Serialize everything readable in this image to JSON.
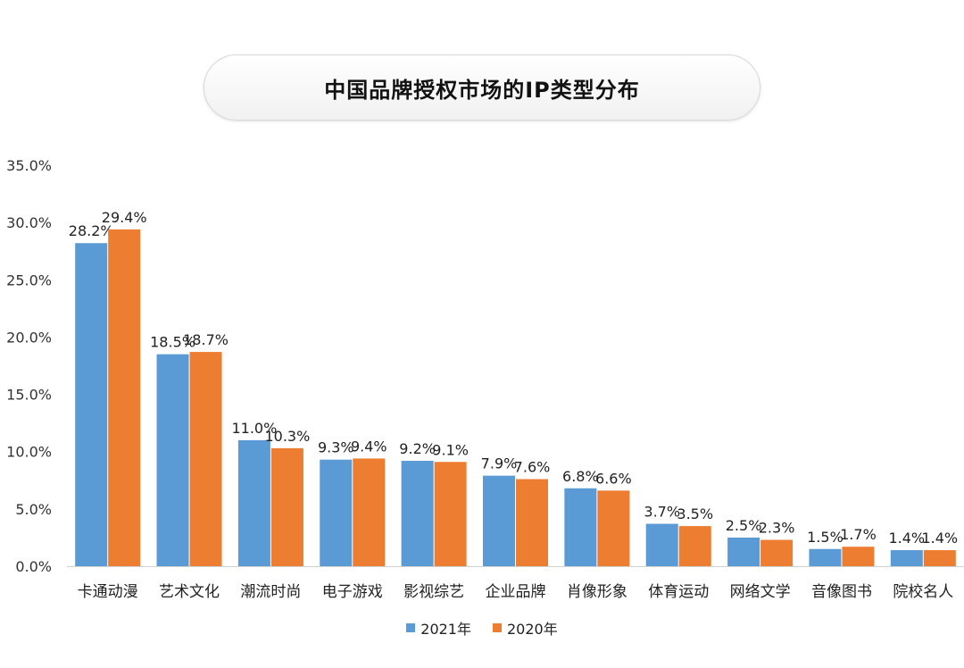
{
  "colors": {
    "series_2021": "#5b9bd5",
    "series_2020": "#ed7d31"
  },
  "chart_data": {
    "type": "bar",
    "title": "中国品牌授权市场的IP类型分布",
    "categories": [
      "卡通动漫",
      "艺术文化",
      "潮流时尚",
      "电子游戏",
      "影视综艺",
      "企业品牌",
      "肖像形象",
      "体育运动",
      "网络文学",
      "音像图书",
      "院校名人"
    ],
    "series": [
      {
        "name": "2021年",
        "values": [
          28.2,
          18.5,
          11.0,
          9.3,
          9.2,
          7.9,
          6.8,
          3.7,
          2.5,
          1.5,
          1.4
        ],
        "labels": [
          "28.2%",
          "18.5%",
          "11.0%",
          "9.3%",
          "9.2%",
          "7.9%",
          "6.8%",
          "3.7%",
          "2.5%",
          "1.5%",
          "1.4%"
        ]
      },
      {
        "name": "2020年",
        "values": [
          29.4,
          18.7,
          10.3,
          9.4,
          9.1,
          7.6,
          6.6,
          3.5,
          2.3,
          1.7,
          1.4
        ],
        "labels": [
          "29.4%",
          "18.7%",
          "10.3%",
          "9.4%",
          "9.1%",
          "7.6%",
          "6.6%",
          "3.5%",
          "2.3%",
          "1.7%",
          "1.4%"
        ]
      }
    ],
    "ylim": [
      0,
      35
    ],
    "yticks": [
      0,
      5,
      10,
      15,
      20,
      25,
      30,
      35
    ],
    "ytick_labels": [
      "0.0%",
      "5.0%",
      "10.0%",
      "15.0%",
      "20.0%",
      "25.0%",
      "30.0%",
      "35.0%"
    ],
    "grid": false,
    "legend_position": "bottom"
  }
}
